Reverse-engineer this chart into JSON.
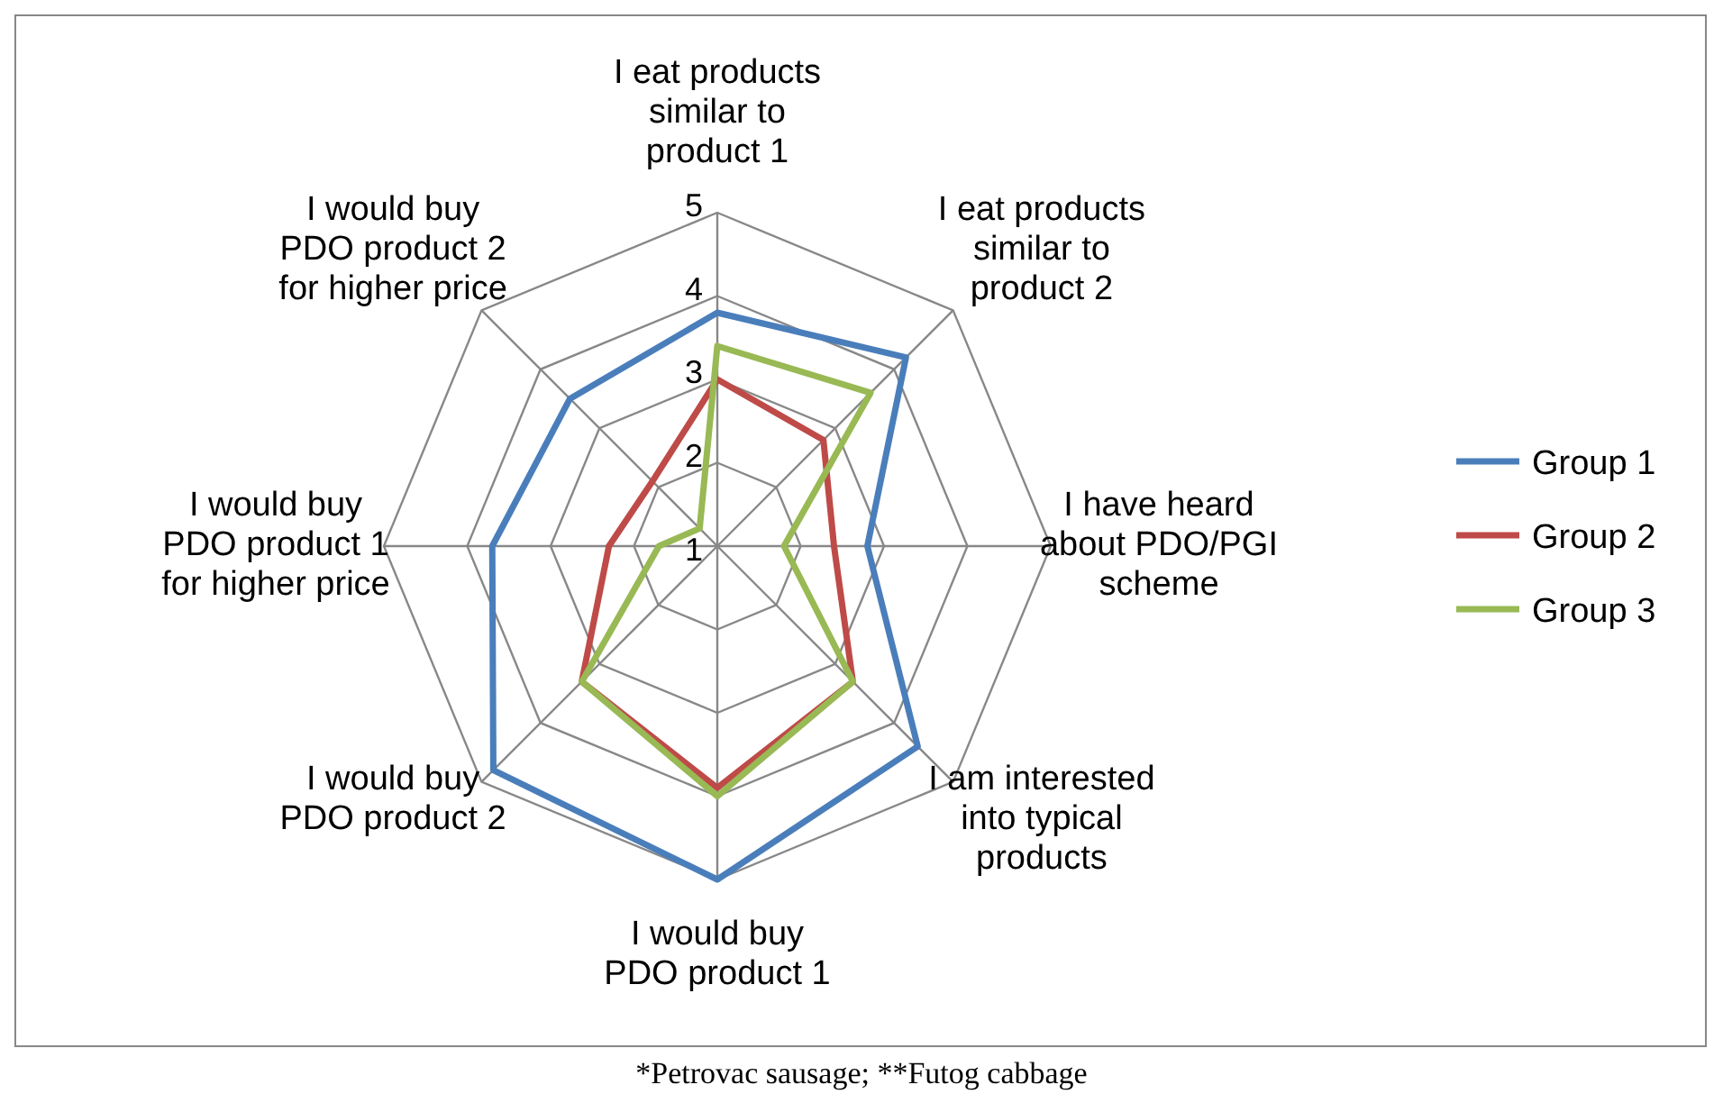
{
  "chart_data": {
    "type": "radar",
    "categories": [
      "I eat products\nsimilar to\nproduct 1",
      "I eat products\nsimilar to\nproduct 2",
      "I have heard\nabout PDO/PGI\nscheme",
      "I am interested\ninto typical\nproducts",
      "I would buy\nPDO product 1",
      "I would buy\nPDO product 2",
      "I would buy\nPDO product 1\nfor higher price",
      "I would buy\nPDO product 2\nfor higher price"
    ],
    "series": [
      {
        "name": "Group 1",
        "color": "#4a7ebb",
        "values": [
          3.8,
          4.2,
          2.8,
          4.4,
          5.0,
          4.8,
          3.7,
          3.5
        ]
      },
      {
        "name": "Group 2",
        "color": "#be4b48",
        "values": [
          3.0,
          2.8,
          2.4,
          3.3,
          3.9,
          3.3,
          2.3,
          2.1
        ]
      },
      {
        "name": "Group 3",
        "color": "#98b954",
        "values": [
          3.4,
          3.6,
          1.8,
          3.3,
          4.0,
          3.3,
          1.7,
          1.3
        ]
      }
    ],
    "ylim": [
      1,
      5
    ],
    "yticks": [
      1,
      2,
      3,
      4,
      5
    ],
    "legend": "right",
    "grid": true,
    "annotations": [
      "*Petrovac sausage; **Futog cabbage"
    ]
  }
}
